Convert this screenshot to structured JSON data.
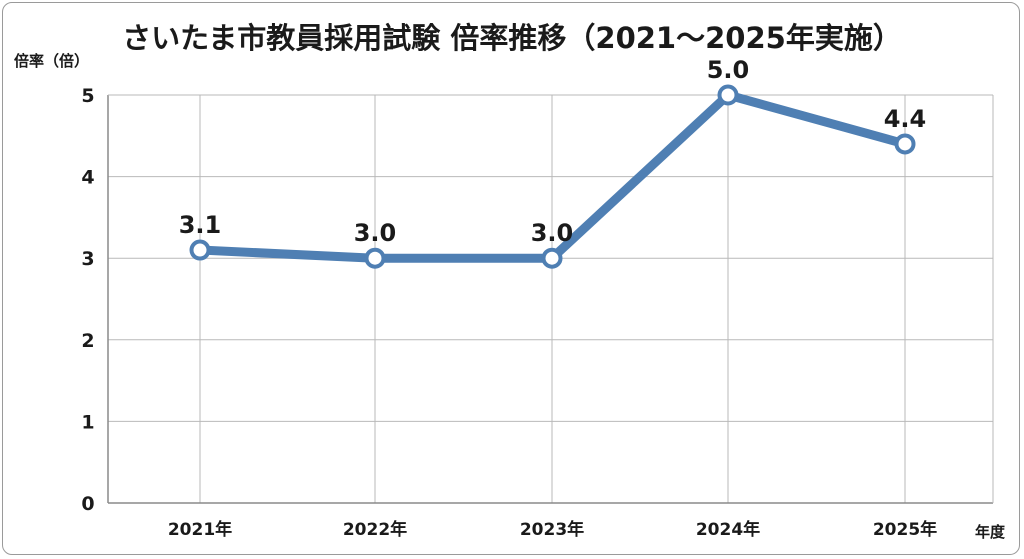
{
  "chart_data": {
    "type": "line",
    "title": "さいたま市教員採用試験 倍率推移（2021〜2025年実施）",
    "ylabel": "倍率（倍）",
    "xlabel": "年度",
    "categories": [
      "2021年",
      "2022年",
      "2023年",
      "2024年",
      "2025年"
    ],
    "series": [
      {
        "values": [
          3.1,
          3.0,
          3.0,
          5.0,
          4.4
        ]
      }
    ],
    "data_labels": [
      "3.1",
      "3.0",
      "3.0",
      "5.0",
      "4.4"
    ],
    "yticks": [
      0,
      1,
      2,
      3,
      4,
      5
    ],
    "ylim": [
      0,
      5
    ],
    "grid": true,
    "line_color": "#4f7fb3",
    "marker_fill": "#ffffff"
  }
}
